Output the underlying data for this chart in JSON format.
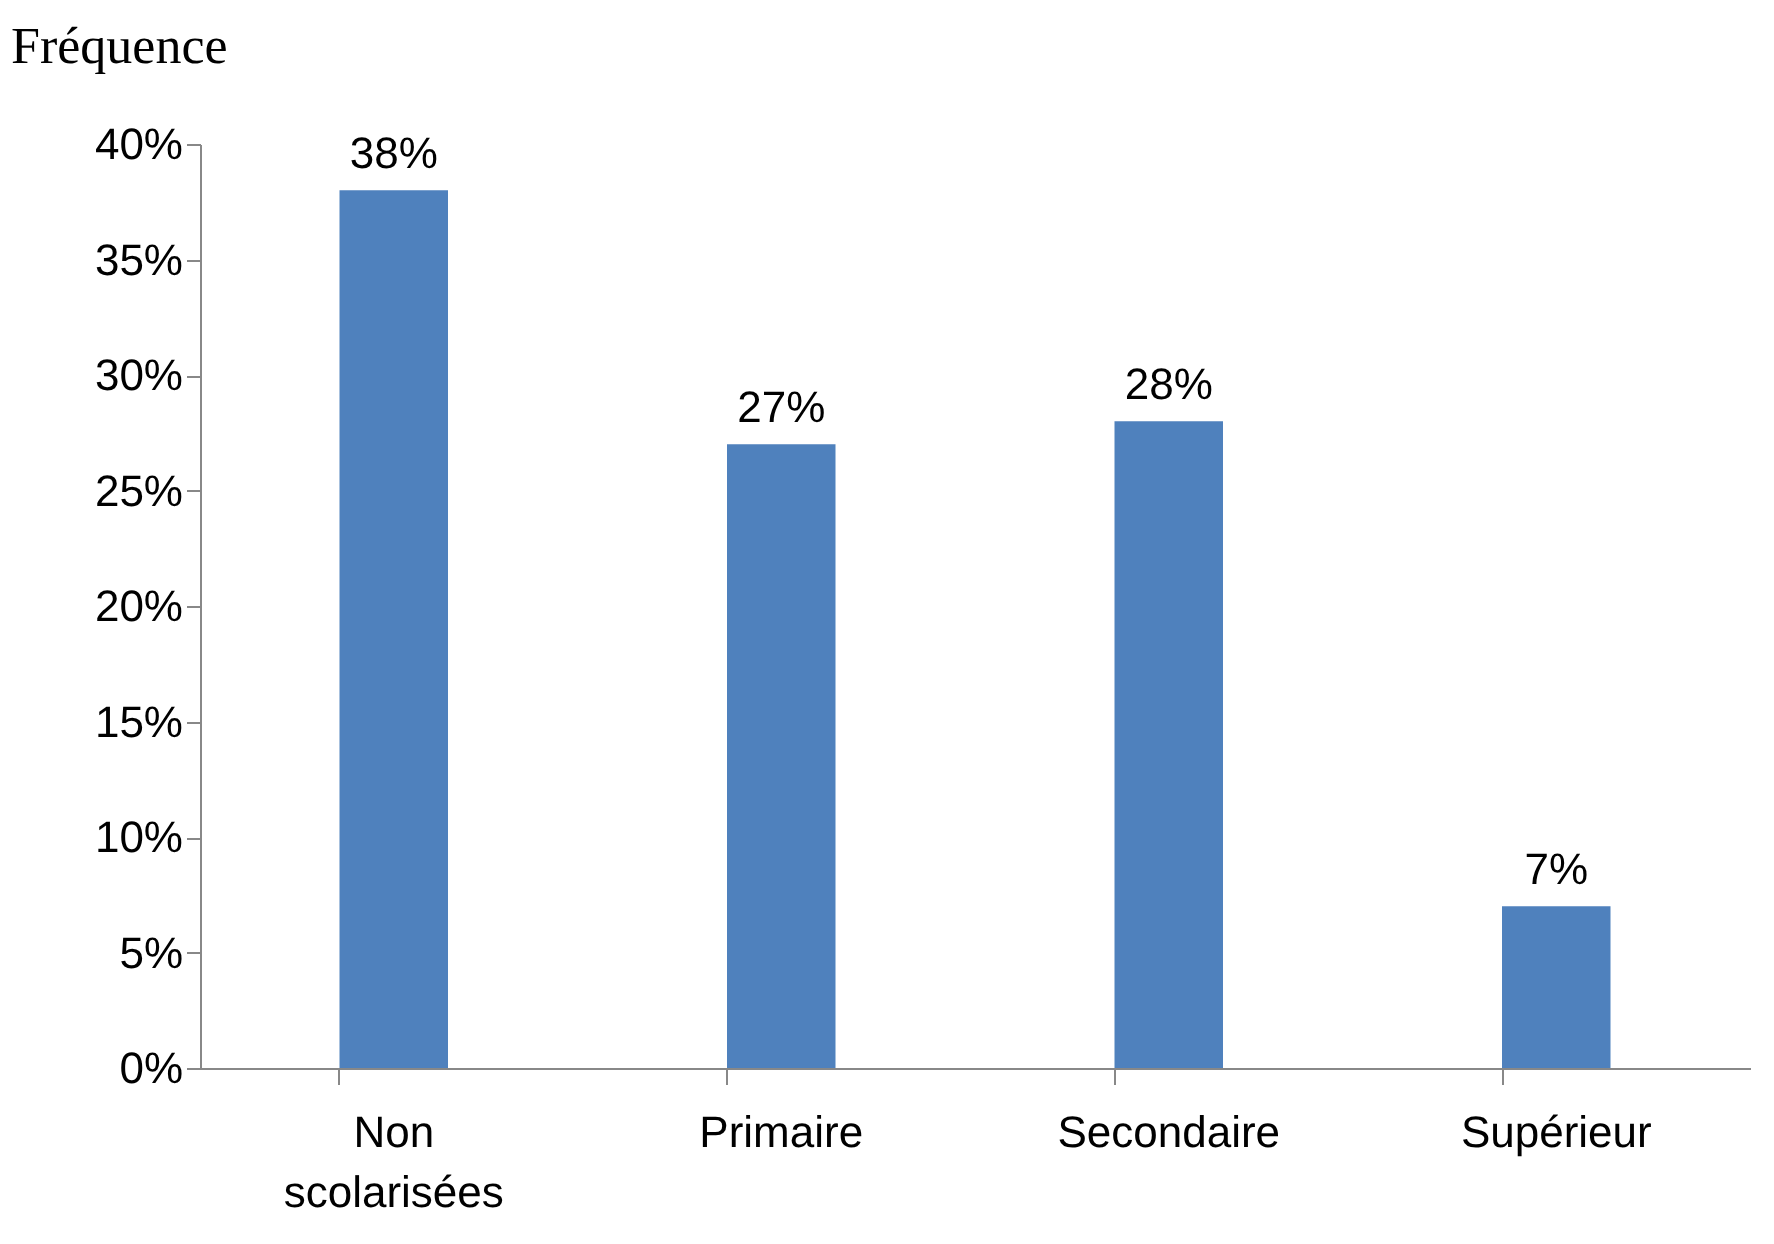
{
  "chart_data": {
    "type": "bar",
    "ylabel": "Fréquence",
    "categories": [
      "Non scolarisées",
      "Primaire",
      "Secondaire",
      "Supérieur"
    ],
    "values": [
      38,
      27,
      28,
      7
    ],
    "value_labels": [
      "38%",
      "27%",
      "28%",
      "7%"
    ],
    "color": "#4f81bd",
    "ylim": [
      0,
      40
    ],
    "yticks": [
      {
        "value": 0,
        "label": "0%"
      },
      {
        "value": 5,
        "label": "5%"
      },
      {
        "value": 10,
        "label": "10%"
      },
      {
        "value": 15,
        "label": "15%"
      },
      {
        "value": 20,
        "label": "20%"
      },
      {
        "value": 25,
        "label": "25%"
      },
      {
        "value": 30,
        "label": "30%"
      },
      {
        "value": 35,
        "label": "35%"
      },
      {
        "value": 40,
        "label": "40%"
      }
    ],
    "grid": false
  }
}
